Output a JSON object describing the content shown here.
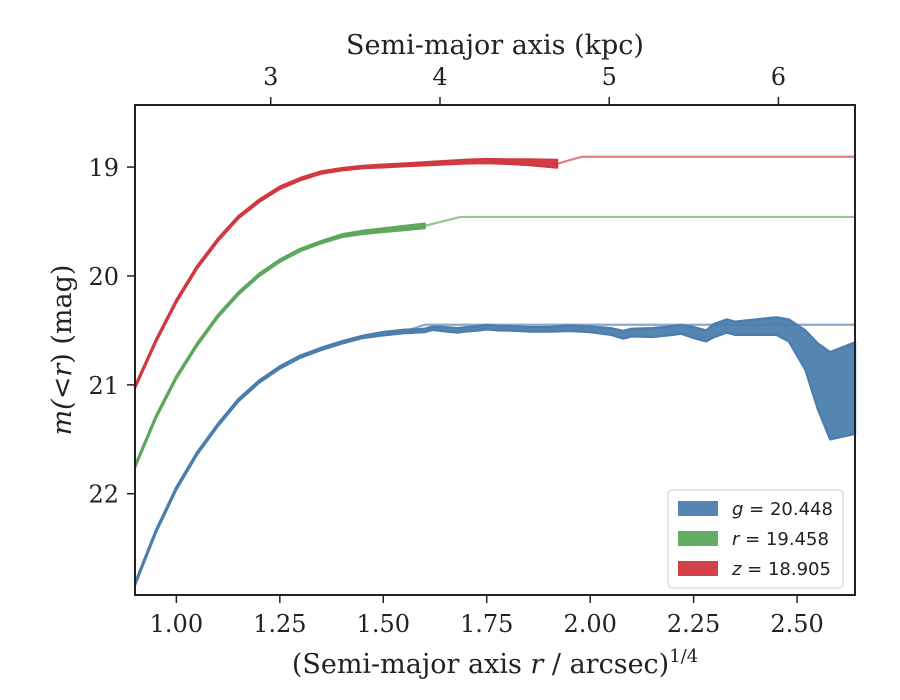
{
  "chart_data": {
    "type": "area",
    "xlabel_prefix": "(Semi-major axis ",
    "xlabel_var": "r",
    "xlabel_suffix": " / arcsec)",
    "xlabel_exp": "1/4",
    "ylabel_pre": "m(",
    "ylabel_lt": "<",
    "ylabel_r": "r",
    "ylabel_post": ") (mag)",
    "top_xlabel": "Semi-major axis (kpc)",
    "xlim": [
      0.9,
      2.64
    ],
    "ylim": [
      22.93,
      18.43
    ],
    "y_inverted": true,
    "xticks": [
      "1.00",
      "1.25",
      "1.50",
      "1.75",
      "2.00",
      "2.25",
      "2.50"
    ],
    "yticks": [
      "19",
      "20",
      "21",
      "22"
    ],
    "top_ticks": [
      {
        "label": "3",
        "at": 1.228
      },
      {
        "label": "4",
        "at": 1.637
      },
      {
        "label": "5",
        "at": 2.046
      },
      {
        "label": "6",
        "at": 2.455
      }
    ],
    "grid": false,
    "legend_position": "bottom-right",
    "legend": [
      {
        "band": "g",
        "value": "20.448"
      },
      {
        "band": "r",
        "value": "19.458"
      },
      {
        "band": "z",
        "value": "18.905"
      }
    ],
    "series": [
      {
        "band": "g",
        "color": "#4c7ead",
        "asymptote": 20.448,
        "x": [
          0.9,
          0.95,
          1.0,
          1.05,
          1.1,
          1.15,
          1.2,
          1.25,
          1.3,
          1.35,
          1.4,
          1.45,
          1.5,
          1.55,
          1.6,
          1.62,
          1.65,
          1.68,
          1.7,
          1.73,
          1.75,
          1.78,
          1.8,
          1.85,
          1.9,
          1.95,
          2.0,
          2.05,
          2.08,
          2.1,
          2.15,
          2.2,
          2.22,
          2.25,
          2.28,
          2.3,
          2.33,
          2.35,
          2.4,
          2.45,
          2.48,
          2.52,
          2.55,
          2.58,
          2.64
        ],
        "mid": [
          22.83,
          22.35,
          21.95,
          21.63,
          21.37,
          21.14,
          20.97,
          20.84,
          20.74,
          20.67,
          20.61,
          20.56,
          20.53,
          20.51,
          20.5,
          20.48,
          20.49,
          20.5,
          20.49,
          20.48,
          20.47,
          20.48,
          20.48,
          20.49,
          20.49,
          20.48,
          20.49,
          20.51,
          20.54,
          20.52,
          20.52,
          20.5,
          20.49,
          20.52,
          20.55,
          20.5,
          20.46,
          20.48,
          20.47,
          20.46,
          20.5,
          20.68,
          20.92,
          21.1,
          21.03
        ],
        "half": [
          0.01,
          0.01,
          0.01,
          0.01,
          0.01,
          0.01,
          0.01,
          0.01,
          0.01,
          0.01,
          0.01,
          0.01,
          0.015,
          0.015,
          0.015,
          0.015,
          0.02,
          0.02,
          0.02,
          0.02,
          0.02,
          0.02,
          0.02,
          0.02,
          0.02,
          0.025,
          0.025,
          0.03,
          0.035,
          0.035,
          0.04,
          0.04,
          0.04,
          0.05,
          0.05,
          0.06,
          0.06,
          0.06,
          0.07,
          0.08,
          0.1,
          0.18,
          0.3,
          0.4,
          0.42
        ]
      },
      {
        "band": "r",
        "color": "#5da85c",
        "asymptote": 19.458,
        "x": [
          0.9,
          0.95,
          1.0,
          1.05,
          1.1,
          1.15,
          1.2,
          1.25,
          1.3,
          1.35,
          1.4,
          1.45,
          1.5,
          1.55,
          1.6
        ],
        "mid": [
          21.75,
          21.3,
          20.93,
          20.63,
          20.37,
          20.16,
          19.99,
          19.86,
          19.76,
          19.69,
          19.63,
          19.6,
          19.58,
          19.56,
          19.54
        ],
        "half": [
          0.01,
          0.01,
          0.01,
          0.01,
          0.01,
          0.01,
          0.01,
          0.01,
          0.01,
          0.01,
          0.012,
          0.014,
          0.016,
          0.018,
          0.02
        ]
      },
      {
        "band": "z",
        "color": "#d0393f",
        "asymptote": 18.905,
        "x": [
          0.9,
          0.95,
          1.0,
          1.05,
          1.1,
          1.15,
          1.2,
          1.25,
          1.3,
          1.35,
          1.4,
          1.45,
          1.5,
          1.55,
          1.6,
          1.65,
          1.7,
          1.75,
          1.8,
          1.85,
          1.92
        ],
        "mid": [
          21.02,
          20.6,
          20.23,
          19.92,
          19.67,
          19.46,
          19.31,
          19.19,
          19.11,
          19.05,
          19.02,
          19.0,
          18.99,
          18.98,
          18.97,
          18.96,
          18.95,
          18.945,
          18.95,
          18.955,
          18.97
        ],
        "half": [
          0.01,
          0.01,
          0.01,
          0.01,
          0.01,
          0.01,
          0.01,
          0.01,
          0.01,
          0.01,
          0.01,
          0.01,
          0.012,
          0.012,
          0.014,
          0.015,
          0.016,
          0.018,
          0.02,
          0.025,
          0.035
        ]
      }
    ]
  }
}
